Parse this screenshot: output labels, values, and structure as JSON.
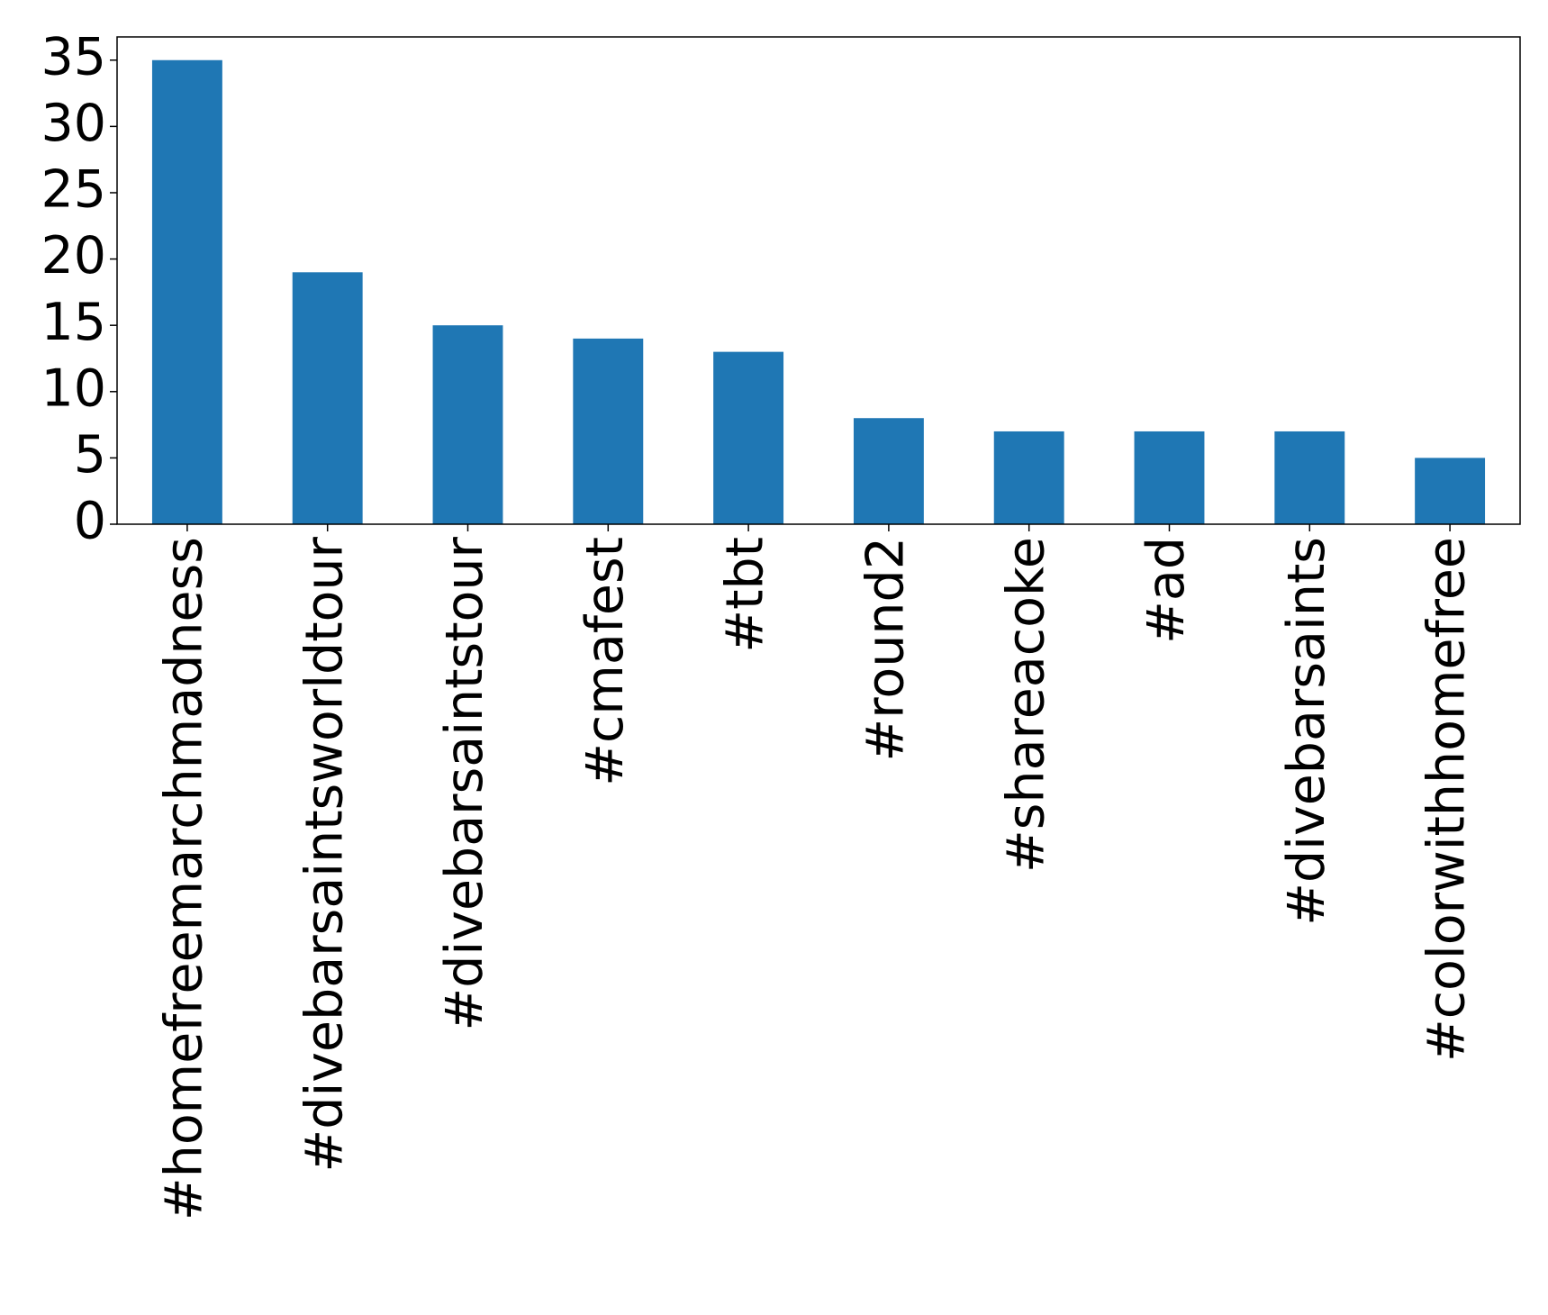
{
  "chart_data": {
    "type": "bar",
    "categories": [
      "#homefreemarchmadness",
      "#divebarsaintsworldtour",
      "#divebarsaintstour",
      "#cmafest",
      "#tbt",
      "#round2",
      "#shareacoke",
      "#ad",
      "#divebarsaints",
      "#colorwithhomefree"
    ],
    "values": [
      35,
      19,
      15,
      14,
      13,
      8,
      7,
      7,
      7,
      5
    ],
    "color": "#1f77b4",
    "ylim": [
      0,
      36.75
    ],
    "yticks": [
      0,
      5,
      10,
      15,
      20,
      25,
      30,
      35
    ],
    "grid": false
  }
}
